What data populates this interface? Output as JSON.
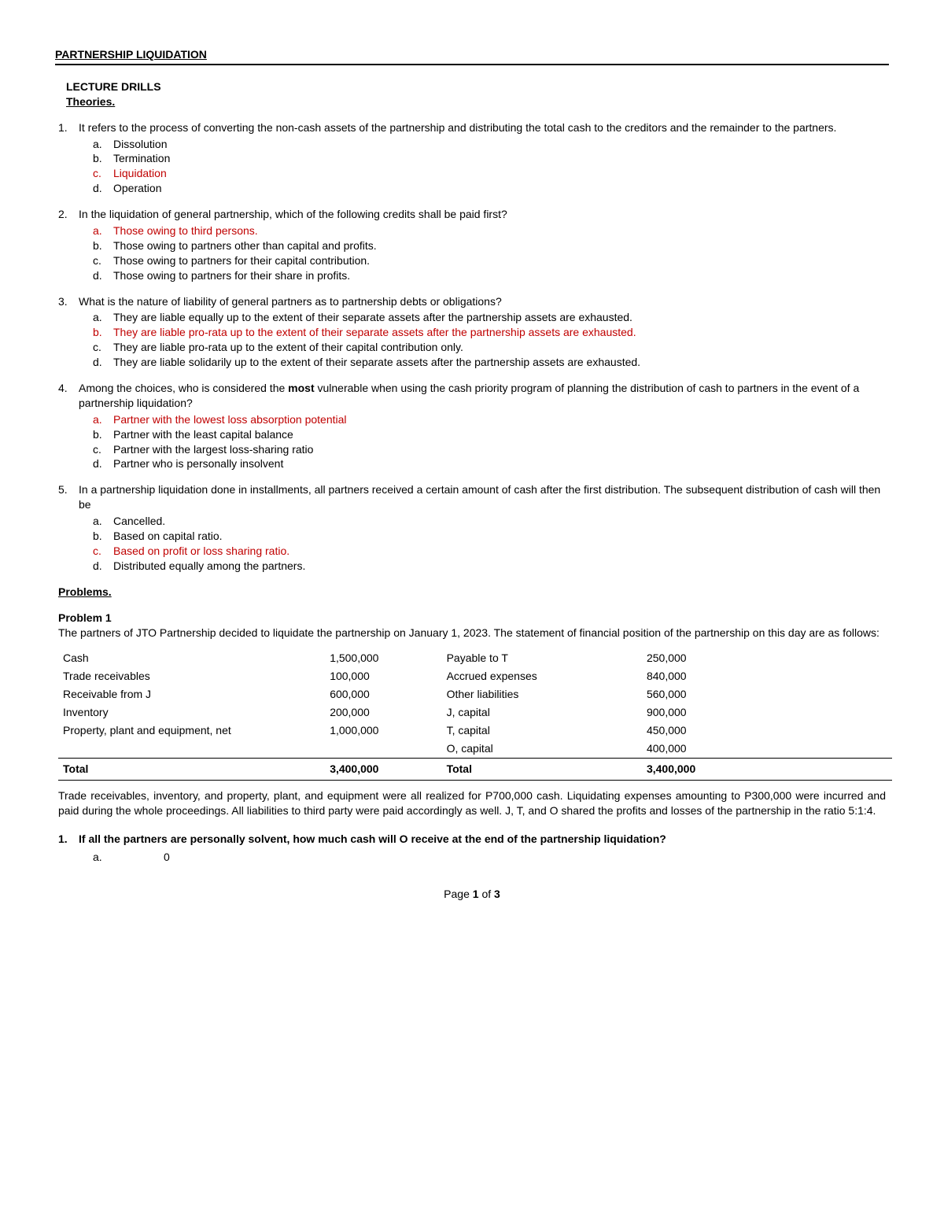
{
  "title": "PARTNERSHIP LIQUIDATION",
  "section": {
    "line1": "LECTURE DRILLS",
    "line2": "Theories."
  },
  "questions": [
    {
      "num": "1.",
      "text": "It refers to the process of converting the non-cash assets of the partnership and distributing the total cash to the creditors and the remainder to the partners.",
      "opts": [
        {
          "l": "a.",
          "t": "Dissolution",
          "ans": false
        },
        {
          "l": "b.",
          "t": "Termination",
          "ans": false
        },
        {
          "l": "c.",
          "t": "Liquidation",
          "ans": true
        },
        {
          "l": "d.",
          "t": "Operation",
          "ans": false
        }
      ]
    },
    {
      "num": "2.",
      "text": "In the liquidation of general partnership, which of the following credits shall be paid first?",
      "opts": [
        {
          "l": "a.",
          "t": "Those owing to third persons.",
          "ans": true
        },
        {
          "l": "b.",
          "t": "Those owing to partners other than capital and profits.",
          "ans": false
        },
        {
          "l": "c.",
          "t": "Those owing to partners for their capital contribution.",
          "ans": false
        },
        {
          "l": "d.",
          "t": "Those owing to partners for their share in profits.",
          "ans": false
        }
      ]
    },
    {
      "num": "3.",
      "text": "What is the nature of liability of general partners as to partnership debts or obligations?",
      "opts": [
        {
          "l": "a.",
          "t": "They are liable equally up to the extent of their separate assets after the partnership assets are exhausted.",
          "ans": false
        },
        {
          "l": "b.",
          "t": "They are liable pro-rata up to the extent of their separate assets after the partnership assets are exhausted.",
          "ans": true
        },
        {
          "l": "c.",
          "t": "They are liable pro-rata up to the extent of their capital contribution only.",
          "ans": false
        },
        {
          "l": "d.",
          "t": "They are liable solidarily up to the extent of their separate assets after the partnership assets are exhausted.",
          "ans": false
        }
      ]
    },
    {
      "num": "4.",
      "text_pre": "Among the choices, who is considered the ",
      "text_bold": "most",
      "text_post": " vulnerable when using the cash priority program of planning the distribution of cash to partners in the event of a partnership liquidation?",
      "opts": [
        {
          "l": "a.",
          "t": "Partner with the lowest loss absorption potential",
          "ans": true
        },
        {
          "l": "b.",
          "t": "Partner with the least capital balance",
          "ans": false
        },
        {
          "l": "c.",
          "t": "Partner with the largest loss-sharing ratio",
          "ans": false
        },
        {
          "l": "d.",
          "t": "Partner who is personally insolvent",
          "ans": false
        }
      ]
    },
    {
      "num": "5.",
      "text": "In a partnership liquidation done in installments, all partners received a certain amount of cash after the first distribution. The subsequent distribution of cash will then be",
      "opts": [
        {
          "l": "a.",
          "t": "Cancelled.",
          "ans": false
        },
        {
          "l": "b.",
          "t": "Based on capital ratio.",
          "ans": false
        },
        {
          "l": "c.",
          "t": "Based on profit or loss sharing ratio.",
          "ans": true
        },
        {
          "l": "d.",
          "t": "Distributed equally among the partners.",
          "ans": false
        }
      ]
    }
  ],
  "problems_hdr": "Problems.",
  "problem1": {
    "title": "Problem 1",
    "intro": "The partners of JTO Partnership decided to liquidate the partnership on January 1, 2023. The statement of financial position of the partnership on this day are as follows:",
    "left": [
      {
        "label": "Cash",
        "val": "1,500,000"
      },
      {
        "label": "Trade receivables",
        "val": "100,000"
      },
      {
        "label": "Receivable from J",
        "val": "600,000"
      },
      {
        "label": "Inventory",
        "val": "200,000"
      },
      {
        "label": "Property, plant and equipment, net",
        "val": "1,000,000"
      },
      {
        "label": "",
        "val": ""
      }
    ],
    "right": [
      {
        "label": "Payable to T",
        "val": "250,000"
      },
      {
        "label": "Accrued expenses",
        "val": "840,000"
      },
      {
        "label": "Other liabilities",
        "val": "560,000"
      },
      {
        "label": "J, capital",
        "val": "900,000"
      },
      {
        "label": "T, capital",
        "val": "450,000"
      },
      {
        "label": "O, capital",
        "val": "400,000"
      }
    ],
    "total": {
      "l1": "Total",
      "v1": "3,400,000",
      "l2": "Total",
      "v2": "3,400,000"
    },
    "after": "Trade receivables, inventory, and property, plant, and equipment were all realized for P700,000 cash. Liquidating expenses amounting to P300,000 were incurred and paid during the whole proceedings. All liabilities to third party were paid accordingly as well. J, T, and O shared the profits and losses of the partnership in the ratio 5:1:4.",
    "subq": {
      "num": "1.",
      "text": "If all the partners are personally solvent, how much cash will O receive at the end of the partnership liquidation?",
      "opt": {
        "l": "a.",
        "v": "0"
      }
    }
  },
  "footer": {
    "pre": "Page ",
    "cur": "1",
    "mid": " of ",
    "tot": "3"
  }
}
